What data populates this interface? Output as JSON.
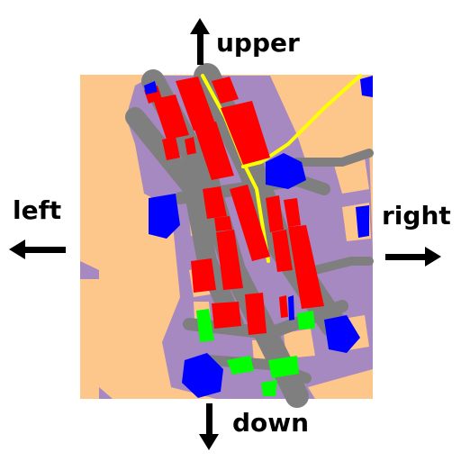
{
  "directions": {
    "upper": "upper",
    "down": "down",
    "left": "left",
    "right": "right"
  },
  "legend_colors": {
    "background_land": "#fdc68a",
    "residential_area": "#a689c0",
    "road": "#7f7f7f",
    "building": "#ff0000",
    "water": "#0000ff",
    "green_space": "#00ff00",
    "main_street": "#ffff00"
  }
}
